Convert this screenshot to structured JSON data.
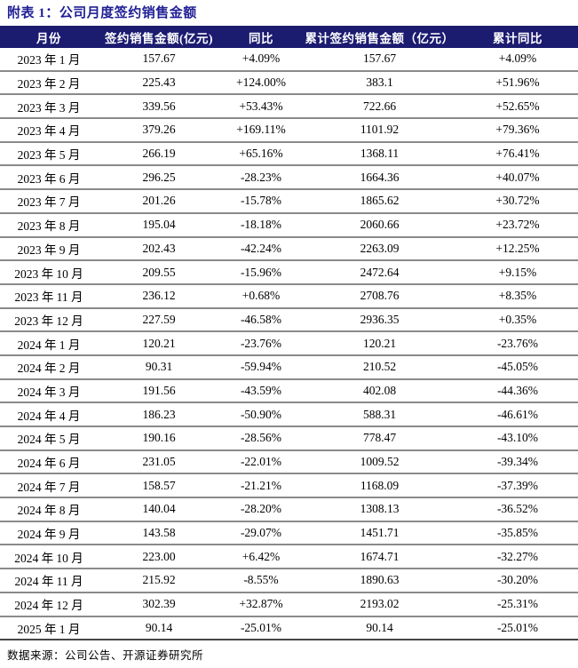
{
  "title": "附表 1：公司月度签约销售金额",
  "colors": {
    "title_text": "#1f1f96",
    "header_background": "#1b1b70",
    "header_text": "#ffffff",
    "row_separator": "#8a8a8a",
    "table_bottom_border": "#454545"
  },
  "table": {
    "headers": [
      "月份",
      "签约销售金额(亿元)",
      "同比",
      "累计签约销售金额（亿元）",
      "累计同比"
    ],
    "rows": [
      {
        "month": "2023 年 1 月",
        "sales": "157.67",
        "yoy": "+4.09%",
        "cum_sales": "157.67",
        "cum_yoy": "+4.09%"
      },
      {
        "month": "2023 年 2 月",
        "sales": "225.43",
        "yoy": "+124.00%",
        "cum_sales": "383.1",
        "cum_yoy": "+51.96%"
      },
      {
        "month": "2023 年 3 月",
        "sales": "339.56",
        "yoy": "+53.43%",
        "cum_sales": "722.66",
        "cum_yoy": "+52.65%"
      },
      {
        "month": "2023 年 4 月",
        "sales": "379.26",
        "yoy": "+169.11%",
        "cum_sales": "1101.92",
        "cum_yoy": "+79.36%"
      },
      {
        "month": "2023 年 5 月",
        "sales": "266.19",
        "yoy": "+65.16%",
        "cum_sales": "1368.11",
        "cum_yoy": "+76.41%"
      },
      {
        "month": "2023 年 6 月",
        "sales": "296.25",
        "yoy": "-28.23%",
        "cum_sales": "1664.36",
        "cum_yoy": "+40.07%"
      },
      {
        "month": "2023 年 7 月",
        "sales": "201.26",
        "yoy": "-15.78%",
        "cum_sales": "1865.62",
        "cum_yoy": "+30.72%"
      },
      {
        "month": "2023 年 8 月",
        "sales": "195.04",
        "yoy": "-18.18%",
        "cum_sales": "2060.66",
        "cum_yoy": "+23.72%"
      },
      {
        "month": "2023 年 9 月",
        "sales": "202.43",
        "yoy": "-42.24%",
        "cum_sales": "2263.09",
        "cum_yoy": "+12.25%"
      },
      {
        "month": "2023 年 10 月",
        "sales": "209.55",
        "yoy": "-15.96%",
        "cum_sales": "2472.64",
        "cum_yoy": "+9.15%"
      },
      {
        "month": "2023 年 11 月",
        "sales": "236.12",
        "yoy": "+0.68%",
        "cum_sales": "2708.76",
        "cum_yoy": "+8.35%"
      },
      {
        "month": "2023 年 12 月",
        "sales": "227.59",
        "yoy": "-46.58%",
        "cum_sales": "2936.35",
        "cum_yoy": "+0.35%"
      },
      {
        "month": "2024 年 1 月",
        "sales": "120.21",
        "yoy": "-23.76%",
        "cum_sales": "120.21",
        "cum_yoy": "-23.76%"
      },
      {
        "month": "2024 年 2 月",
        "sales": "90.31",
        "yoy": "-59.94%",
        "cum_sales": "210.52",
        "cum_yoy": "-45.05%"
      },
      {
        "month": "2024 年 3 月",
        "sales": "191.56",
        "yoy": "-43.59%",
        "cum_sales": "402.08",
        "cum_yoy": "-44.36%"
      },
      {
        "month": "2024 年 4 月",
        "sales": "186.23",
        "yoy": "-50.90%",
        "cum_sales": "588.31",
        "cum_yoy": "-46.61%"
      },
      {
        "month": "2024 年 5 月",
        "sales": "190.16",
        "yoy": "-28.56%",
        "cum_sales": "778.47",
        "cum_yoy": "-43.10%"
      },
      {
        "month": "2024 年 6 月",
        "sales": "231.05",
        "yoy": "-22.01%",
        "cum_sales": "1009.52",
        "cum_yoy": "-39.34%"
      },
      {
        "month": "2024 年 7 月",
        "sales": "158.57",
        "yoy": "-21.21%",
        "cum_sales": "1168.09",
        "cum_yoy": "-37.39%"
      },
      {
        "month": "2024 年 8 月",
        "sales": "140.04",
        "yoy": "-28.20%",
        "cum_sales": "1308.13",
        "cum_yoy": "-36.52%"
      },
      {
        "month": "2024 年 9 月",
        "sales": "143.58",
        "yoy": "-29.07%",
        "cum_sales": "1451.71",
        "cum_yoy": "-35.85%"
      },
      {
        "month": "2024 年 10 月",
        "sales": "223.00",
        "yoy": "+6.42%",
        "cum_sales": "1674.71",
        "cum_yoy": "-32.27%"
      },
      {
        "month": "2024 年 11 月",
        "sales": "215.92",
        "yoy": "-8.55%",
        "cum_sales": "1890.63",
        "cum_yoy": "-30.20%"
      },
      {
        "month": "2024 年 12 月",
        "sales": "302.39",
        "yoy": "+32.87%",
        "cum_sales": "2193.02",
        "cum_yoy": "-25.31%"
      },
      {
        "month": "2025 年 1 月",
        "sales": "90.14",
        "yoy": "-25.01%",
        "cum_sales": "90.14",
        "cum_yoy": "-25.01%"
      }
    ]
  },
  "footer": {
    "source": "数据来源：公司公告、开源证券研究所"
  }
}
